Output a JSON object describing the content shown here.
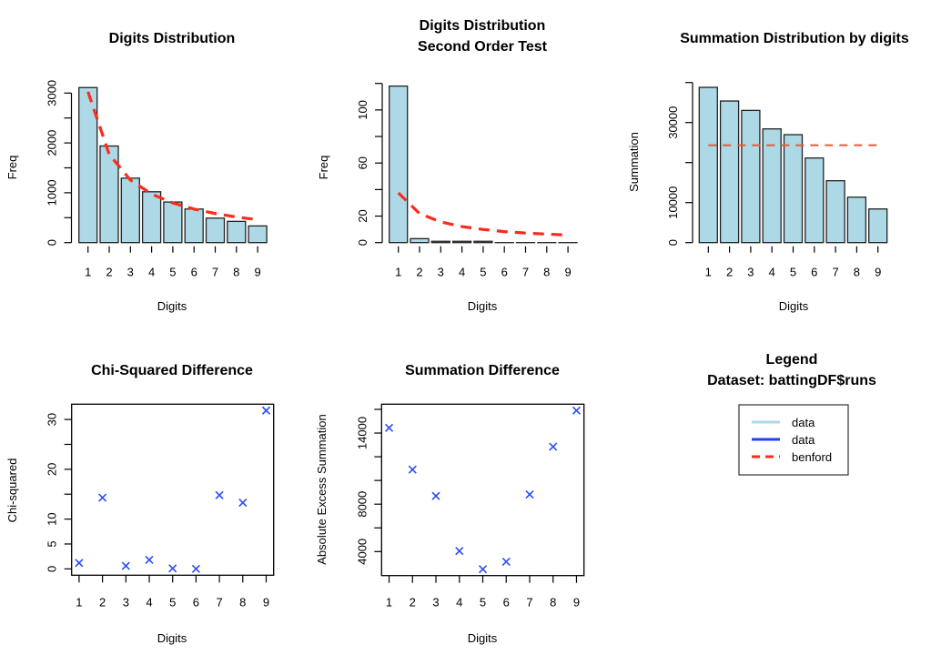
{
  "chart_data": [
    {
      "id": "digits-distribution",
      "type": "bar",
      "title": "Digits Distribution",
      "xlabel": "Digits",
      "ylabel": "Freq",
      "categories": [
        "1",
        "2",
        "3",
        "4",
        "5",
        "6",
        "7",
        "8",
        "9"
      ],
      "series": [
        {
          "name": "data",
          "values": [
            3110,
            1938,
            1293,
            1020,
            814,
            674,
            492,
            426,
            335
          ]
        },
        {
          "name": "benford",
          "style": "dashed-line",
          "values": [
            3025,
            1770,
            1256,
            974,
            796,
            673,
            583,
            514,
            460
          ]
        }
      ],
      "yticks": [
        0,
        500,
        1000,
        1500,
        2000,
        2500,
        3000
      ],
      "ytick_labels": [
        "0",
        "",
        "1000",
        "",
        "2000",
        "",
        "3000"
      ],
      "ylim": [
        0,
        3000
      ],
      "grid": false
    },
    {
      "id": "second-order",
      "type": "bar",
      "title": "Digits Distribution\nSecond Order Test",
      "title_lines": [
        "Digits Distribution",
        "Second Order Test"
      ],
      "xlabel": "Digits",
      "ylabel": "Freq",
      "categories": [
        "1",
        "2",
        "3",
        "4",
        "5",
        "6",
        "7",
        "8",
        "9"
      ],
      "series": [
        {
          "name": "data",
          "values": [
            118,
            3,
            1,
            1,
            1,
            0,
            0,
            0,
            0
          ]
        },
        {
          "name": "benford",
          "style": "dashed-line",
          "values": [
            37.5,
            21.9,
            15.6,
            12.1,
            9.9,
            8.3,
            7.2,
            6.4,
            5.7
          ]
        }
      ],
      "yticks": [
        0,
        20,
        40,
        60,
        80,
        100,
        120
      ],
      "ytick_labels": [
        "0",
        "20",
        "",
        "60",
        "",
        "100",
        ""
      ],
      "ylim": [
        0,
        120
      ],
      "grid": false
    },
    {
      "id": "summation-distribution",
      "type": "bar",
      "title": "Summation Distribution by digits",
      "xlabel": "Digits",
      "ylabel": "Summation",
      "categories": [
        "1",
        "2",
        "3",
        "4",
        "5",
        "6",
        "7",
        "8",
        "9"
      ],
      "series": [
        {
          "name": "data",
          "values": [
            38790,
            35380,
            33030,
            28410,
            26970,
            21140,
            15460,
            11360,
            8410
          ]
        },
        {
          "name": "benford",
          "style": "dashed-line",
          "values": [
            24330,
            24330,
            24330,
            24330,
            24330,
            24330,
            24330,
            24330,
            24330
          ]
        }
      ],
      "yticks": [
        0,
        10000,
        20000,
        30000,
        40000
      ],
      "ytick_labels": [
        "0",
        "10000",
        "",
        "30000",
        ""
      ],
      "ylim": [
        0,
        40000
      ],
      "grid": false
    },
    {
      "id": "chi-squared",
      "type": "scatter",
      "title": "Chi-Squared Difference",
      "xlabel": "Digits",
      "ylabel": "Chi-squared",
      "marker": "x",
      "x": [
        1,
        2,
        3,
        4,
        5,
        6,
        7,
        8,
        9
      ],
      "y": [
        1.2,
        14.3,
        0.6,
        1.8,
        0.1,
        0.0,
        14.8,
        13.3,
        31.8
      ],
      "xticks": [
        1,
        2,
        3,
        4,
        5,
        6,
        7,
        8,
        9
      ],
      "yticks": [
        0,
        5,
        10,
        15,
        20,
        25,
        30
      ],
      "ytick_labels": [
        "0",
        "5",
        "10",
        "",
        "20",
        "",
        "30"
      ],
      "xlim": [
        0.68,
        9.32
      ],
      "ylim": [
        -1.27,
        33.07
      ],
      "grid": false
    },
    {
      "id": "summation-difference",
      "type": "scatter",
      "title": "Summation Difference",
      "xlabel": "Digits",
      "ylabel": "Absolute Excess Summation",
      "marker": "x",
      "x": [
        1,
        2,
        3,
        4,
        5,
        6,
        7,
        8,
        9
      ],
      "y": [
        14440,
        10920,
        8690,
        4050,
        2510,
        3150,
        8820,
        12850,
        15900
      ],
      "xticks": [
        1,
        2,
        3,
        4,
        5,
        6,
        7,
        8,
        9
      ],
      "yticks": [
        4000,
        6000,
        8000,
        10000,
        12000,
        14000,
        16000
      ],
      "ytick_labels": [
        "4000",
        "",
        "8000",
        "",
        "",
        "14000",
        ""
      ],
      "xlim": [
        0.68,
        9.32
      ],
      "ylim": [
        1975,
        16435
      ],
      "grid": false
    }
  ],
  "legend": {
    "title_lines": [
      "Legend",
      "Dataset: battingDF$runs"
    ],
    "placement": "right",
    "entries": [
      {
        "label": "data",
        "style": "solid",
        "color": "#add8e6"
      },
      {
        "label": "data",
        "style": "solid",
        "color": "#1f3ff5"
      },
      {
        "label": "benford",
        "style": "dashed",
        "color": "#ff2a1a"
      }
    ]
  },
  "colors": {
    "bar_fill": "#add8e6",
    "bar_border": "#222222",
    "benford_line": "#ff2a1a",
    "benford_flat_line": "#f0553a",
    "marker": "#2a4cf5"
  }
}
